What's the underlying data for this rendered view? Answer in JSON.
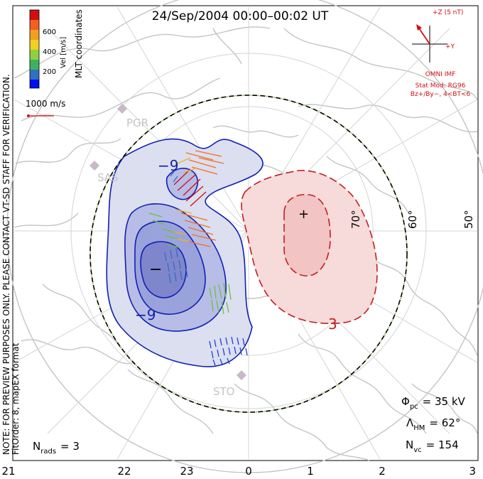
{
  "title": "24/Sep/2004 00:00–00:02 UT",
  "side_note": "NOTE: FOR PREVIEW PURPOSES ONLY. PLEASE CONTACT VT-SD STAFF FOR VERIFICATION.",
  "fit_note": "FitOrder: 8, mapEX format",
  "coord_label": "MLT coordinates",
  "colorbar": {
    "label": "Vel [m/s]",
    "ticks": [
      "600",
      "400",
      "200"
    ],
    "colors": [
      "#d01010",
      "#f06020",
      "#f0a020",
      "#90d040",
      "#40b060",
      "#3070c0",
      "#2040d0",
      "#0010f0"
    ]
  },
  "velocity_scale": "1000 m/s",
  "imf": {
    "z_label": "+Z (5 nT)",
    "y_label": "+Y",
    "model_title": "OMNI IMF",
    "model_line1": "Stat Mod: RG96",
    "model_line2": "Bz+/By−, 4<BT<6"
  },
  "radars": [
    "PGR",
    "SAS",
    "STO"
  ],
  "lat_labels": [
    "70°",
    "60°",
    "50°"
  ],
  "mlt_labels": [
    "21",
    "22",
    "23",
    "0",
    "1",
    "2",
    "3"
  ],
  "contour_labels": {
    "neg": "−9",
    "neg2": "−9",
    "pos": "3"
  },
  "markers": {
    "min": "−",
    "max": "+"
  },
  "stats": {
    "phi_sym": "Φ",
    "phi_sub": "pc",
    "phi_val": "= 35 kV",
    "lam_sym": "Λ",
    "lam_sub": "HM",
    "lam_val": "= 62°",
    "nvc_sym": "N",
    "nvc_sub": "vc",
    "nvc_val": "= 154",
    "nrad_sym": "N",
    "nrad_sub": "rads",
    "nrad_val": "= 3"
  }
}
